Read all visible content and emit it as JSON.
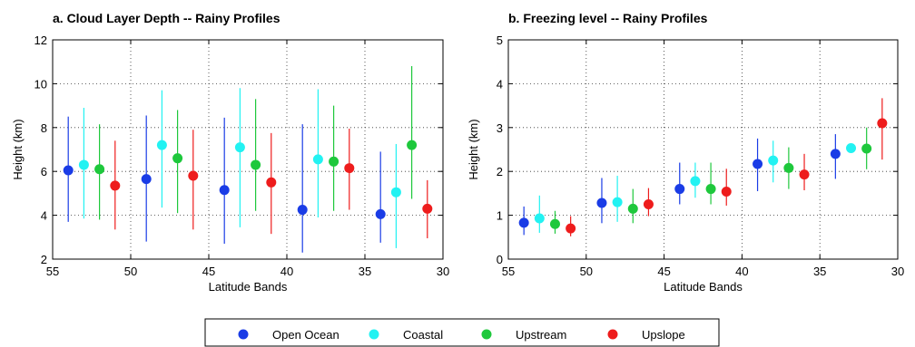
{
  "chart_data": [
    {
      "type": "scatter",
      "title": "a. Cloud Layer Depth -- Rainy Profiles",
      "xlabel": "Latitude Bands",
      "ylabel": "Height (km)",
      "xlim": [
        55,
        30
      ],
      "ylim": [
        2,
        12
      ],
      "xticks": [
        55,
        50,
        45,
        40,
        35,
        30
      ],
      "yticks": [
        2,
        4,
        6,
        8,
        10,
        12
      ],
      "grid": true,
      "series": [
        {
          "name": "Open Ocean",
          "color": "#1a3ce6",
          "points": [
            {
              "x": 54,
              "y": 6.05,
              "lo": 3.7,
              "hi": 8.5
            },
            {
              "x": 49,
              "y": 5.65,
              "lo": 2.8,
              "hi": 8.55
            },
            {
              "x": 44,
              "y": 5.15,
              "lo": 2.7,
              "hi": 8.45
            },
            {
              "x": 39,
              "y": 4.25,
              "lo": 2.3,
              "hi": 8.15
            },
            {
              "x": 34,
              "y": 4.05,
              "lo": 2.75,
              "hi": 6.9
            }
          ]
        },
        {
          "name": "Coastal",
          "color": "#22f2f2",
          "points": [
            {
              "x": 53,
              "y": 6.3,
              "lo": 3.85,
              "hi": 8.9
            },
            {
              "x": 48,
              "y": 7.2,
              "lo": 4.35,
              "hi": 9.7
            },
            {
              "x": 43,
              "y": 7.1,
              "lo": 3.45,
              "hi": 9.8
            },
            {
              "x": 38,
              "y": 6.55,
              "lo": 3.9,
              "hi": 9.75
            },
            {
              "x": 33,
              "y": 5.05,
              "lo": 2.5,
              "hi": 7.25
            }
          ]
        },
        {
          "name": "Upstream",
          "color": "#1ec83c",
          "points": [
            {
              "x": 52,
              "y": 6.1,
              "lo": 3.8,
              "hi": 8.15
            },
            {
              "x": 47,
              "y": 6.6,
              "lo": 4.1,
              "hi": 8.8
            },
            {
              "x": 42,
              "y": 6.3,
              "lo": 4.2,
              "hi": 9.3
            },
            {
              "x": 37,
              "y": 6.45,
              "lo": 4.2,
              "hi": 9.0
            },
            {
              "x": 32,
              "y": 7.2,
              "lo": 4.75,
              "hi": 10.8
            }
          ]
        },
        {
          "name": "Upslope",
          "color": "#ee1c1c",
          "points": [
            {
              "x": 51,
              "y": 5.35,
              "lo": 3.35,
              "hi": 7.4
            },
            {
              "x": 46,
              "y": 5.8,
              "lo": 3.35,
              "hi": 7.9
            },
            {
              "x": 41,
              "y": 5.5,
              "lo": 3.15,
              "hi": 7.75
            },
            {
              "x": 36,
              "y": 6.15,
              "lo": 4.25,
              "hi": 7.95
            },
            {
              "x": 31,
              "y": 4.3,
              "lo": 2.95,
              "hi": 5.6
            }
          ]
        }
      ]
    },
    {
      "type": "scatter",
      "title": "b. Freezing level -- Rainy Profiles",
      "xlabel": "Latitude Bands",
      "ylabel": "Height (km)",
      "xlim": [
        55,
        30
      ],
      "ylim": [
        0,
        5
      ],
      "xticks": [
        55,
        50,
        45,
        40,
        35,
        30
      ],
      "yticks": [
        0,
        1,
        2,
        3,
        4,
        5
      ],
      "grid": true,
      "series": [
        {
          "name": "Open Ocean",
          "color": "#1a3ce6",
          "points": [
            {
              "x": 54,
              "y": 0.83,
              "lo": 0.55,
              "hi": 1.2
            },
            {
              "x": 49,
              "y": 1.28,
              "lo": 0.82,
              "hi": 1.85
            },
            {
              "x": 44,
              "y": 1.6,
              "lo": 1.25,
              "hi": 2.2
            },
            {
              "x": 39,
              "y": 2.17,
              "lo": 1.55,
              "hi": 2.75
            },
            {
              "x": 34,
              "y": 2.4,
              "lo": 1.83,
              "hi": 2.85
            }
          ]
        },
        {
          "name": "Coastal",
          "color": "#22f2f2",
          "points": [
            {
              "x": 53,
              "y": 0.93,
              "lo": 0.6,
              "hi": 1.45
            },
            {
              "x": 48,
              "y": 1.3,
              "lo": 0.85,
              "hi": 1.9
            },
            {
              "x": 43,
              "y": 1.78,
              "lo": 1.4,
              "hi": 2.2
            },
            {
              "x": 38,
              "y": 2.25,
              "lo": 1.75,
              "hi": 2.7
            },
            {
              "x": 33,
              "y": 2.53,
              "lo": 2.45,
              "hi": 2.63
            }
          ]
        },
        {
          "name": "Upstream",
          "color": "#1ec83c",
          "points": [
            {
              "x": 52,
              "y": 0.8,
              "lo": 0.58,
              "hi": 1.1
            },
            {
              "x": 47,
              "y": 1.15,
              "lo": 0.82,
              "hi": 1.6
            },
            {
              "x": 42,
              "y": 1.6,
              "lo": 1.25,
              "hi": 2.2
            },
            {
              "x": 37,
              "y": 2.08,
              "lo": 1.6,
              "hi": 2.55
            },
            {
              "x": 32,
              "y": 2.52,
              "lo": 2.05,
              "hi": 3.0
            }
          ]
        },
        {
          "name": "Upslope",
          "color": "#ee1c1c",
          "points": [
            {
              "x": 51,
              "y": 0.7,
              "lo": 0.52,
              "hi": 0.98
            },
            {
              "x": 46,
              "y": 1.25,
              "lo": 0.98,
              "hi": 1.62
            },
            {
              "x": 41,
              "y": 1.54,
              "lo": 1.22,
              "hi": 2.06
            },
            {
              "x": 36,
              "y": 1.93,
              "lo": 1.57,
              "hi": 2.4
            },
            {
              "x": 31,
              "y": 3.1,
              "lo": 2.27,
              "hi": 3.67
            }
          ]
        }
      ]
    }
  ],
  "legend": {
    "placement": "bottom-center",
    "items": [
      {
        "label": "Open Ocean",
        "color": "#1a3ce6"
      },
      {
        "label": "Coastal",
        "color": "#22f2f2"
      },
      {
        "label": "Upstream",
        "color": "#1ec83c"
      },
      {
        "label": "Upslope",
        "color": "#ee1c1c"
      }
    ]
  }
}
